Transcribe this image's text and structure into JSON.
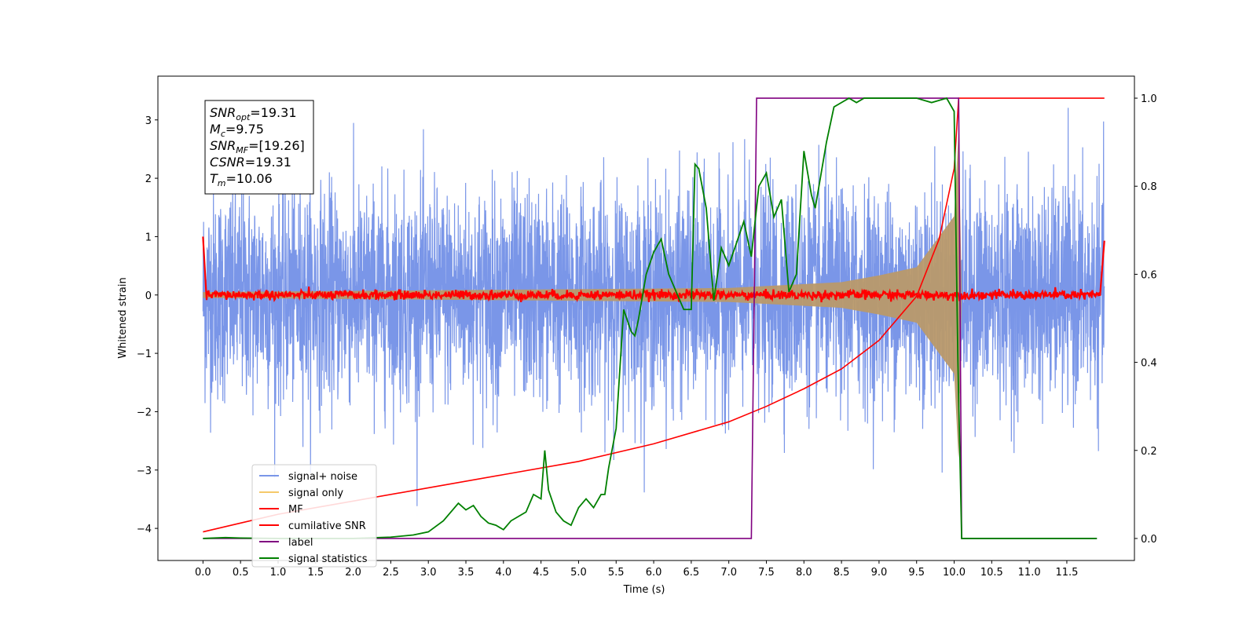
{
  "chart_data": {
    "type": "line",
    "xlabel": "Time (s)",
    "ylabel": "Whitened strain",
    "xlim": [
      -0.6,
      12.4
    ],
    "ylim": [
      -4.55,
      3.75
    ],
    "y2lim": [
      -0.05,
      1.05
    ],
    "grid": false,
    "xticks": [
      "0.0",
      "0.5",
      "1.0",
      "1.5",
      "2.0",
      "2.5",
      "3.0",
      "3.5",
      "4.0",
      "4.5",
      "5.0",
      "5.5",
      "6.0",
      "6.5",
      "7.0",
      "7.5",
      "8.0",
      "8.5",
      "9.0",
      "9.5",
      "10.0",
      "10.5",
      "11.0",
      "11.5"
    ],
    "yticks": [
      "3",
      "2",
      "1",
      "0",
      "−1",
      "−2",
      "−3",
      "−4"
    ],
    "y2ticks": [
      "1.0",
      "0.8",
      "0.6",
      "0.4",
      "0.2",
      "0.0"
    ],
    "annotation": [
      {
        "sym": "SNR",
        "sub": "opt",
        "val": "=19.31"
      },
      {
        "sym": "M",
        "sub": "c",
        "val": "=9.75"
      },
      {
        "sym": "SNR",
        "sub": "MF",
        "val": "=[19.26]"
      },
      {
        "sym": "CSNR",
        "sub": "",
        "val": "=19.31"
      },
      {
        "sym": "T",
        "sub": "m",
        "val": "=10.06"
      }
    ],
    "legend_position": "lower-left",
    "series": [
      {
        "name": "signal+ noise",
        "color": "#7a96e8",
        "axis": "left",
        "kind": "noisy-band",
        "sigma": 0.9,
        "time_range": [
          0,
          12
        ]
      },
      {
        "name": "signal only",
        "color": "#f5c96a",
        "axis": "left",
        "kind": "chirp-envelope",
        "amplitude_at": [
          [
            0,
            0.05
          ],
          [
            7.0,
            0.12
          ],
          [
            8.5,
            0.22
          ],
          [
            9.5,
            0.45
          ],
          [
            10.0,
            1.3
          ],
          [
            10.06,
            2.8
          ],
          [
            10.1,
            0.0
          ]
        ]
      },
      {
        "name": "MF",
        "color": "#ff0000",
        "axis": "left",
        "kind": "noise",
        "sigma": 0.04,
        "endpoints": [
          [
            0,
            1.0
          ],
          [
            12,
            0.93
          ]
        ]
      },
      {
        "name": "cumilative SNR",
        "color": "#ff0000",
        "axis": "right",
        "x": [
          0,
          0.5,
          1.0,
          2.0,
          3.0,
          4.0,
          5.0,
          6.0,
          7.0,
          7.5,
          8.0,
          8.5,
          9.0,
          9.5,
          9.8,
          10.0,
          10.06,
          12.0
        ],
        "y": [
          0.015,
          0.035,
          0.055,
          0.085,
          0.115,
          0.145,
          0.175,
          0.215,
          0.265,
          0.3,
          0.34,
          0.385,
          0.45,
          0.55,
          0.68,
          0.84,
          1.0,
          1.0
        ]
      },
      {
        "name": "label",
        "color": "#800080",
        "axis": "right",
        "x": [
          0,
          7.3,
          7.37,
          10.06,
          10.1,
          11.9
        ],
        "y": [
          0,
          0,
          1,
          1,
          0,
          0
        ]
      },
      {
        "name": "signal statistics",
        "color": "#008000",
        "axis": "right",
        "x": [
          0,
          0.3,
          0.5,
          1.0,
          2.0,
          2.5,
          2.8,
          3.0,
          3.2,
          3.4,
          3.5,
          3.6,
          3.7,
          3.8,
          3.9,
          4.0,
          4.1,
          4.2,
          4.3,
          4.35,
          4.4,
          4.5,
          4.55,
          4.6,
          4.7,
          4.8,
          4.9,
          5.0,
          5.1,
          5.2,
          5.3,
          5.35,
          5.4,
          5.5,
          5.6,
          5.7,
          5.75,
          5.8,
          5.9,
          6.0,
          6.1,
          6.2,
          6.3,
          6.4,
          6.5,
          6.55,
          6.6,
          6.7,
          6.8,
          6.9,
          7.0,
          7.1,
          7.2,
          7.3,
          7.4,
          7.5,
          7.6,
          7.7,
          7.8,
          7.9,
          8.0,
          8.1,
          8.15,
          8.2,
          8.3,
          8.4,
          8.5,
          8.6,
          8.7,
          8.8,
          9.0,
          9.5,
          9.7,
          9.9,
          10.0,
          10.05,
          10.1,
          10.15,
          11.9
        ],
        "y": [
          0.0,
          0.002,
          0.001,
          0.0,
          0.0,
          0.003,
          0.008,
          0.015,
          0.04,
          0.08,
          0.065,
          0.075,
          0.05,
          0.035,
          0.03,
          0.02,
          0.04,
          0.05,
          0.06,
          0.08,
          0.1,
          0.09,
          0.2,
          0.11,
          0.06,
          0.04,
          0.03,
          0.07,
          0.09,
          0.07,
          0.1,
          0.1,
          0.16,
          0.25,
          0.52,
          0.47,
          0.46,
          0.5,
          0.6,
          0.65,
          0.68,
          0.6,
          0.56,
          0.52,
          0.52,
          0.85,
          0.84,
          0.75,
          0.54,
          0.66,
          0.62,
          0.67,
          0.72,
          0.64,
          0.8,
          0.83,
          0.73,
          0.77,
          0.56,
          0.6,
          0.88,
          0.78,
          0.75,
          0.8,
          0.9,
          0.98,
          0.99,
          1.0,
          0.99,
          1.0,
          1.0,
          1.0,
          0.99,
          1.0,
          0.97,
          0.4,
          0.0,
          0.0,
          0.0
        ]
      }
    ]
  }
}
